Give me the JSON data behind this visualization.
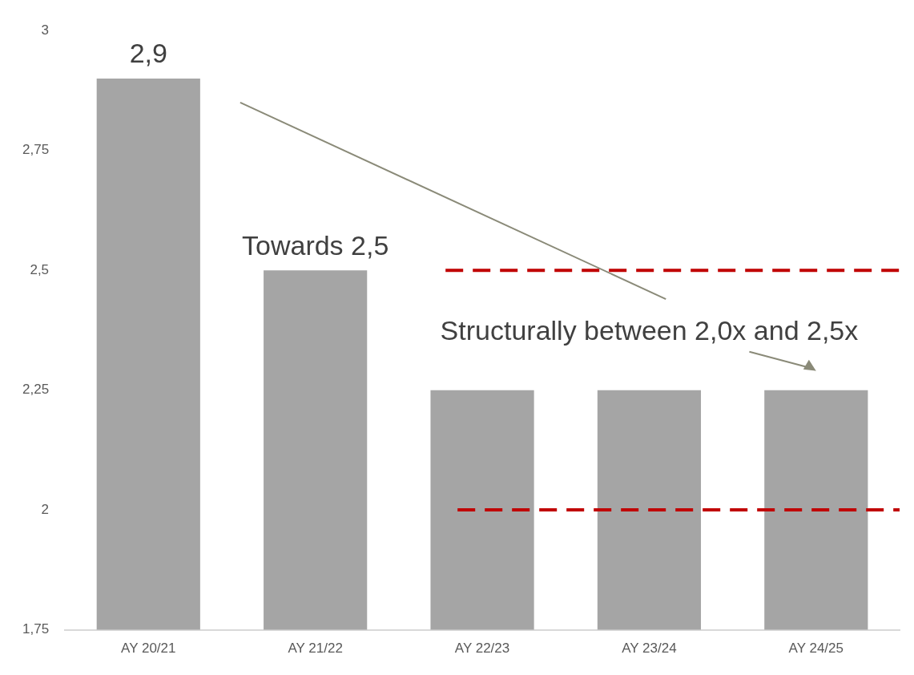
{
  "chart_data": {
    "type": "bar",
    "categories": [
      "AY 20/21",
      "AY 21/22",
      "AY 22/23",
      "AY 23/24",
      "AY 24/25"
    ],
    "values": [
      2.9,
      2.5,
      2.25,
      2.25,
      2.25
    ],
    "color": "#a5a5a5",
    "ylim": [
      1.75,
      3
    ],
    "yticks": [
      {
        "value": 1.75,
        "label": "1,75"
      },
      2,
      {
        "value": 2.25,
        "label": "2,25"
      },
      {
        "value": 2.5,
        "label": "2,5"
      },
      {
        "value": 2.75,
        "label": "2,75"
      },
      3
    ],
    "grid": false,
    "legend": false,
    "ref_lines": [
      {
        "axis": "y",
        "value": 2.5,
        "color": "#c00000",
        "line_style": "dashed"
      },
      {
        "axis": "y",
        "value": 2,
        "color": "#c00000",
        "line_style": "dashed"
      }
    ],
    "annotations": [
      {
        "text": "2,9",
        "x": "AY 20/21",
        "y": 2.9
      },
      {
        "text": "Towards 2,5",
        "x": "AY 21/22",
        "y": 2.5
      },
      "Structurally between 2,0x and 2,5x"
    ]
  }
}
